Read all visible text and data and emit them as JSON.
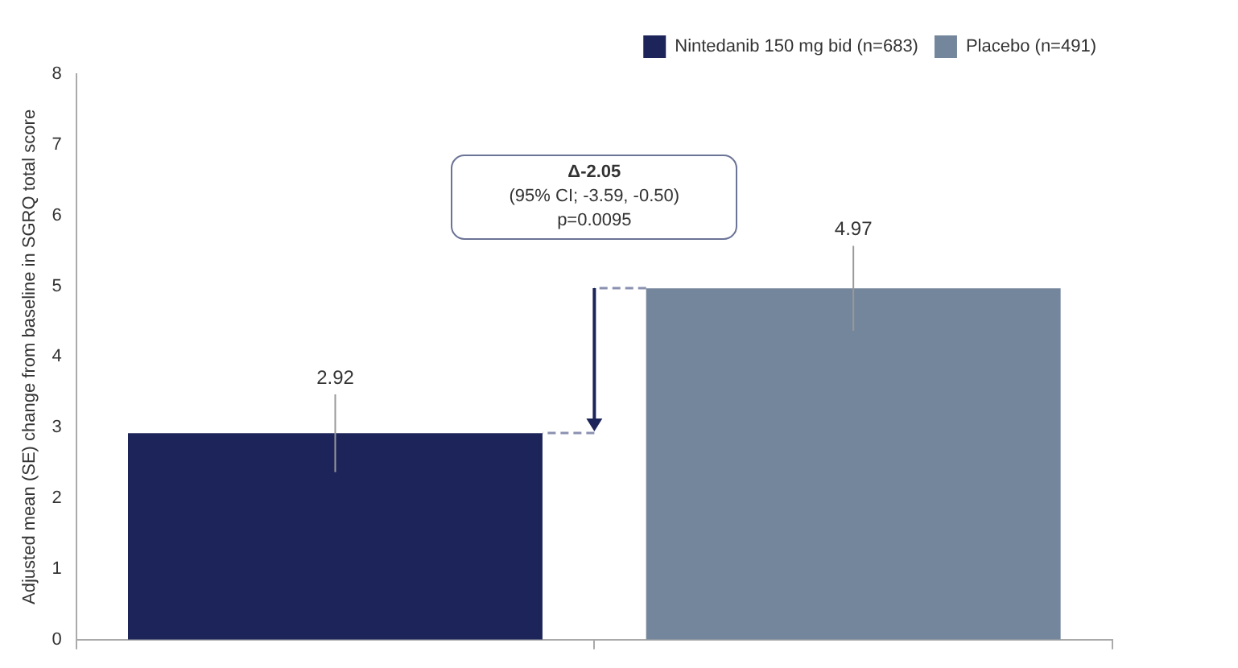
{
  "chart_data": {
    "type": "bar",
    "categories": [
      null,
      null
    ],
    "ylabel": "Adjusted mean (SE) change from baseline in SGRQ total score",
    "series": [
      {
        "name": "Nintedanib 150 mg bid (n=683)",
        "color": "#1c2459",
        "values": [
          2.92,
          null
        ],
        "errors": [
          0.55,
          null
        ]
      },
      {
        "name": "Placebo (n=491)",
        "color": "#74869b",
        "values": [
          null,
          4.97
        ],
        "errors": [
          null,
          0.6
        ]
      }
    ],
    "ylim": [
      0,
      8
    ],
    "yticks": [
      0,
      1,
      2,
      3,
      4,
      5,
      6,
      7,
      8
    ],
    "grid": false,
    "legend": "top right",
    "data_labels": true,
    "annotations": [
      "Δ-2.05",
      "(95% CI; -3.59, -0.50)",
      "p=0.0095"
    ]
  }
}
